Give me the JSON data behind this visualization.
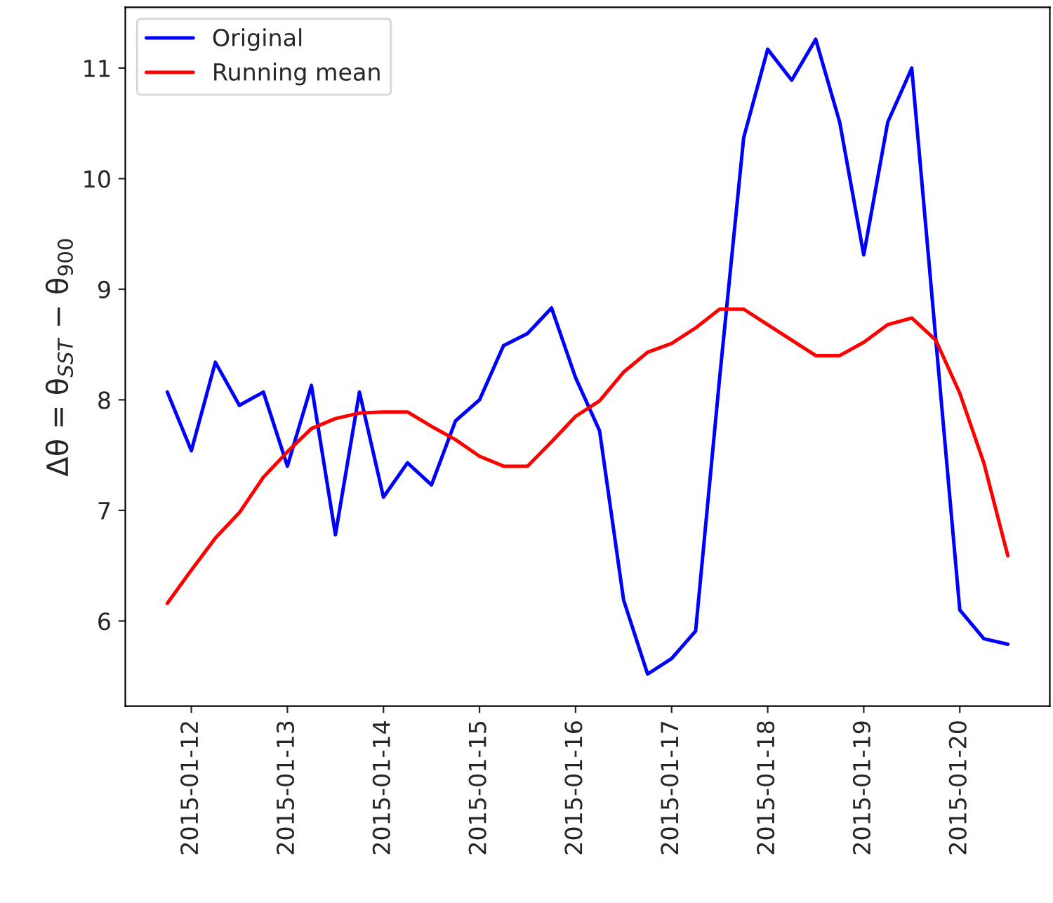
{
  "chart_data": {
    "type": "line",
    "ylabel": "Δθ = θ$_{SST}$ − θ$_{900}$",
    "x": [
      "2015-01-11T18:00",
      "2015-01-12T00:00",
      "2015-01-12T06:00",
      "2015-01-12T12:00",
      "2015-01-12T18:00",
      "2015-01-13T00:00",
      "2015-01-13T06:00",
      "2015-01-13T12:00",
      "2015-01-13T18:00",
      "2015-01-14T00:00",
      "2015-01-14T06:00",
      "2015-01-14T12:00",
      "2015-01-14T18:00",
      "2015-01-15T00:00",
      "2015-01-15T06:00",
      "2015-01-15T12:00",
      "2015-01-15T18:00",
      "2015-01-16T00:00",
      "2015-01-16T06:00",
      "2015-01-16T12:00",
      "2015-01-16T18:00",
      "2015-01-17T00:00",
      "2015-01-17T06:00",
      "2015-01-17T12:00",
      "2015-01-17T18:00",
      "2015-01-18T00:00",
      "2015-01-18T06:00",
      "2015-01-18T12:00",
      "2015-01-18T18:00",
      "2015-01-19T00:00",
      "2015-01-19T06:00",
      "2015-01-19T12:00",
      "2015-01-19T18:00",
      "2015-01-20T00:00",
      "2015-01-20T06:00",
      "2015-01-20T12:00"
    ],
    "series": [
      {
        "name": "Original",
        "color": "#0000ff",
        "values": [
          8.07,
          7.54,
          8.34,
          7.95,
          8.07,
          7.4,
          8.13,
          6.78,
          8.07,
          7.12,
          7.43,
          7.23,
          7.81,
          8.0,
          8.49,
          8.6,
          8.83,
          8.2,
          7.72,
          6.19,
          5.52,
          5.66,
          5.91,
          8.2,
          10.37,
          11.17,
          10.89,
          11.26,
          10.51,
          9.31,
          10.51,
          11.0,
          8.55,
          6.1,
          5.84,
          5.79
        ]
      },
      {
        "name": "Running mean",
        "color": "#ff0000",
        "values": [
          6.16,
          6.46,
          6.75,
          6.98,
          7.3,
          7.53,
          7.74,
          7.83,
          7.88,
          7.89,
          7.89,
          7.76,
          7.64,
          7.49,
          7.4,
          7.4,
          7.62,
          7.85,
          7.99,
          8.25,
          8.43,
          8.51,
          8.65,
          8.82,
          8.82,
          8.68,
          8.54,
          8.4,
          8.4,
          8.52,
          8.68,
          8.74,
          8.54,
          8.06,
          7.43,
          6.59
        ]
      }
    ],
    "xlim": [
      "2015-01-11T07:30",
      "2015-01-20T22:30"
    ],
    "xticks": [
      "2015-01-12",
      "2015-01-13",
      "2015-01-14",
      "2015-01-15",
      "2015-01-16",
      "2015-01-17",
      "2015-01-18",
      "2015-01-19",
      "2015-01-20"
    ],
    "ylim": [
      5.23,
      11.55
    ],
    "yticks": [
      6,
      7,
      8,
      9,
      10,
      11
    ],
    "legend": "top left",
    "grid": false
  }
}
